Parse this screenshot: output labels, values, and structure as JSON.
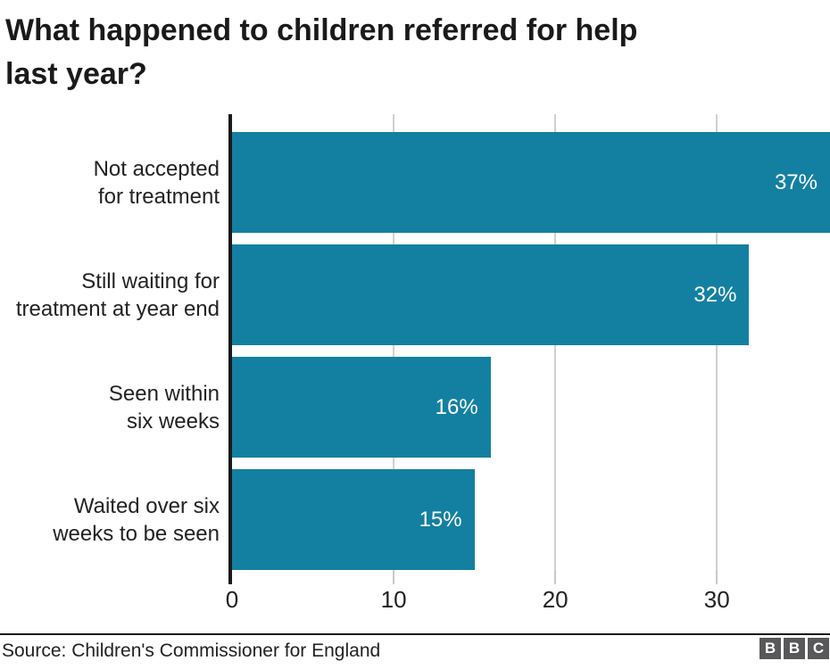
{
  "title": "What happened to children referred for help\nlast year?",
  "source": "Source: Children's Commissioner for England",
  "logo": {
    "letters": [
      "B",
      "B",
      "C"
    ]
  },
  "colors": {
    "bar": "#1380A1",
    "axis": "#1a1a1a",
    "gridline": "#d0d0d0",
    "tick": "#c8c8c8",
    "text": "#222222",
    "title": "#1a1a1a",
    "value_label": "#ffffff",
    "logo_bg": "#58585a",
    "divider": "#1a1a1a"
  },
  "chart_data": {
    "type": "bar",
    "orientation": "horizontal",
    "title": "What happened to children referred for help last year?",
    "categories": [
      "Not accepted\nfor treatment",
      "Still waiting for\ntreatment at year end",
      "Seen within\nsix weeks",
      "Waited over six\nweeks to be seen"
    ],
    "values": [
      37,
      32,
      16,
      15
    ],
    "value_labels": [
      "37%",
      "32%",
      "16%",
      "15%"
    ],
    "xlabel": "",
    "ylabel": "",
    "xlim": [
      0,
      37
    ],
    "xticks": [
      0,
      10,
      20,
      30
    ],
    "grid": true,
    "legend": false,
    "source": "Source: Children's Commissioner for England"
  }
}
